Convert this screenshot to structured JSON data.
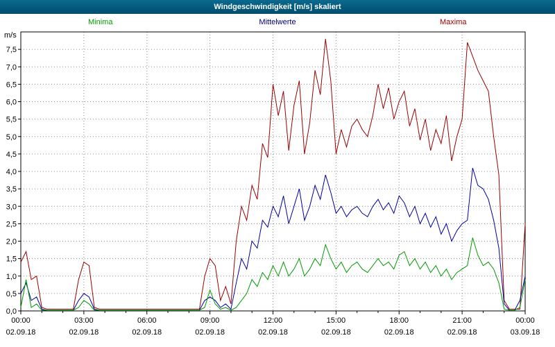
{
  "window": {
    "title": "Windgeschwindigkeit [m/s] skaliert"
  },
  "legend": {
    "minima": "Minima",
    "mittelwerte": "Mittelwerte",
    "maxima": "Maxima"
  },
  "colors": {
    "titlebar": "#045a7c",
    "minima": "#009900",
    "mittelwerte": "#0000a0",
    "maxima": "#990000",
    "grid": "#8a8a8a",
    "frame": "#000000"
  },
  "chart_data": {
    "type": "line",
    "title": "Windgeschwindigkeit [m/s] skaliert",
    "ylabel": "m/s",
    "ylim": [
      0,
      8
    ],
    "y_tick_step": 0.5,
    "y_tick_labels": [
      "7,5",
      "7,0",
      "6,5",
      "6,0",
      "5,5",
      "5,0",
      "4,5",
      "4,0",
      "3,5",
      "3,0",
      "2,5",
      "2,0",
      "1,5",
      "1,0",
      "0,5",
      "0,0"
    ],
    "x_hours_range": [
      0,
      24
    ],
    "x_tick_hours": [
      0,
      3,
      6,
      9,
      12,
      15,
      18,
      21,
      24
    ],
    "x_tick_labels": [
      "00:00",
      "03:00",
      "06:00",
      "09:00",
      "12:00",
      "15:00",
      "18:00",
      "21:00",
      "00:00"
    ],
    "x_tick_dates": [
      "02.09.18",
      "02.09.18",
      "02.09.18",
      "02.09.18",
      "02.09.18",
      "02.09.18",
      "02.09.18",
      "02.09.18",
      "03.09.18"
    ],
    "sample_interval_minutes": 15,
    "grid": true,
    "legend_position": "top",
    "series": [
      {
        "name": "Maxima",
        "color": "#990000",
        "values": [
          1.4,
          1.7,
          0.9,
          1.0,
          0.1,
          0.05,
          0.05,
          0.05,
          0.05,
          0.05,
          0.05,
          0.9,
          1.4,
          1.3,
          0.1,
          0.05,
          0.05,
          0.05,
          0.05,
          0.05,
          0.05,
          0.05,
          0.05,
          0.05,
          0.05,
          0.05,
          0.05,
          0.05,
          0.05,
          0.05,
          0.05,
          0.05,
          0.05,
          0.05,
          0.05,
          1.0,
          1.5,
          1.3,
          0.3,
          0.7,
          0.2,
          2.0,
          3.0,
          2.6,
          3.6,
          3.2,
          4.8,
          4.4,
          6.5,
          5.6,
          6.3,
          4.6,
          5.9,
          6.6,
          4.5,
          5.4,
          6.9,
          6.2,
          7.8,
          6.6,
          4.5,
          5.2,
          4.7,
          5.3,
          5.5,
          5.2,
          5.0,
          5.6,
          6.5,
          5.8,
          6.4,
          5.5,
          6.0,
          6.3,
          5.3,
          5.8,
          4.9,
          5.5,
          4.6,
          5.2,
          4.8,
          5.6,
          4.3,
          5.0,
          5.5,
          7.7,
          7.3,
          6.9,
          6.6,
          6.3,
          5.0,
          3.9,
          0.3,
          0.05,
          0.05,
          0.05,
          2.5
        ]
      },
      {
        "name": "Mittelwerte",
        "color": "#0000a0",
        "values": [
          0.5,
          0.8,
          0.3,
          0.4,
          0.05,
          0.02,
          0.02,
          0.02,
          0.02,
          0.02,
          0.02,
          0.3,
          0.5,
          0.4,
          0.05,
          0.02,
          0.02,
          0.02,
          0.02,
          0.02,
          0.02,
          0.02,
          0.02,
          0.02,
          0.02,
          0.02,
          0.02,
          0.02,
          0.02,
          0.02,
          0.02,
          0.02,
          0.02,
          0.02,
          0.02,
          0.3,
          0.4,
          0.3,
          0.1,
          0.2,
          0.05,
          0.8,
          1.5,
          1.2,
          2.0,
          1.8,
          2.6,
          2.4,
          3.0,
          2.7,
          3.3,
          2.5,
          3.0,
          3.5,
          2.6,
          3.0,
          3.6,
          3.2,
          3.9,
          3.4,
          2.8,
          3.0,
          2.7,
          2.9,
          3.0,
          2.8,
          2.7,
          3.0,
          3.2,
          2.9,
          3.1,
          2.8,
          3.3,
          3.1,
          2.7,
          3.0,
          2.5,
          2.8,
          2.4,
          2.7,
          2.2,
          2.5,
          2.0,
          2.3,
          2.5,
          2.6,
          4.1,
          3.6,
          3.5,
          3.2,
          2.6,
          1.8,
          0.2,
          0.02,
          0.02,
          0.3,
          1.0
        ]
      },
      {
        "name": "Minima",
        "color": "#009900",
        "values": [
          0.1,
          0.9,
          0.1,
          0.2,
          0.02,
          0.02,
          0.02,
          0.02,
          0.02,
          0.02,
          0.02,
          0.1,
          0.3,
          0.2,
          0.02,
          0.02,
          0.02,
          0.02,
          0.02,
          0.02,
          0.02,
          0.02,
          0.02,
          0.02,
          0.02,
          0.02,
          0.02,
          0.02,
          0.02,
          0.02,
          0.02,
          0.02,
          0.02,
          0.02,
          0.02,
          0.1,
          0.6,
          0.2,
          0.05,
          0.1,
          0.02,
          0.1,
          0.3,
          0.5,
          0.9,
          0.7,
          1.1,
          0.9,
          1.3,
          1.0,
          1.4,
          1.0,
          1.2,
          1.5,
          1.0,
          1.2,
          1.5,
          1.3,
          1.9,
          1.5,
          1.2,
          1.4,
          1.1,
          1.3,
          1.4,
          1.2,
          1.1,
          1.3,
          1.5,
          1.3,
          1.4,
          1.2,
          1.6,
          1.7,
          1.3,
          1.5,
          1.2,
          1.4,
          1.1,
          1.3,
          1.0,
          1.2,
          0.9,
          1.1,
          1.2,
          1.3,
          2.1,
          1.6,
          1.3,
          1.4,
          1.2,
          0.8,
          0.05,
          0.02,
          0.02,
          0.1,
          0.9
        ]
      }
    ]
  }
}
